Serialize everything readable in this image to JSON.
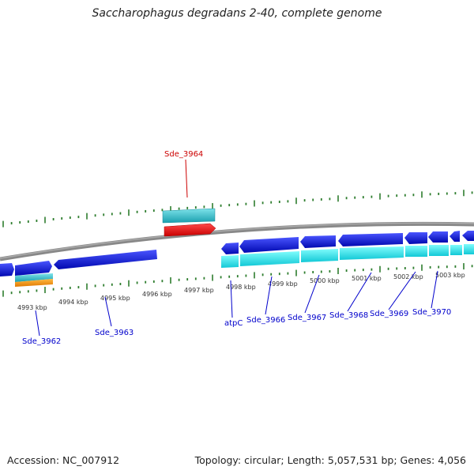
{
  "title": "Saccharophagus degradans 2-40, complete genome",
  "footer": {
    "accession": "Accession: NC_007912",
    "summary": "Topology: circular; Length: 5,057,531 bp; Genes: 4,056"
  },
  "scale_labels": [
    "4993 kbp",
    "4994 kbp",
    "4995 kbp",
    "4996 kbp",
    "4997 kbp",
    "4998 kbp",
    "4999 kbp",
    "5000 kbp",
    "5001 kbp",
    "5002 kbp",
    "5003 kbp"
  ],
  "gene_labels": [
    {
      "text": "Sde_3962",
      "color": "#0000cc"
    },
    {
      "text": "Sde_3963",
      "color": "#0000cc"
    },
    {
      "text": "Sde_3964",
      "color": "#cc0000"
    },
    {
      "text": "atpC",
      "color": "#0000cc"
    },
    {
      "text": "Sde_3966",
      "color": "#0000cc"
    },
    {
      "text": "Sde_3967",
      "color": "#0000cc"
    },
    {
      "text": "Sde_3968",
      "color": "#0000cc"
    },
    {
      "text": "Sde_3969",
      "color": "#0000cc"
    },
    {
      "text": "Sde_3970",
      "color": "#0000cc"
    }
  ],
  "colors": {
    "backbone": "#777777",
    "tick": "#2e7d2e",
    "cds_blue": "#0a12d8",
    "rna_cyan": "#18e6e6",
    "rna_teal": "#22bcc8",
    "rna_red": "#ee1111",
    "orange": "#ff9900"
  }
}
